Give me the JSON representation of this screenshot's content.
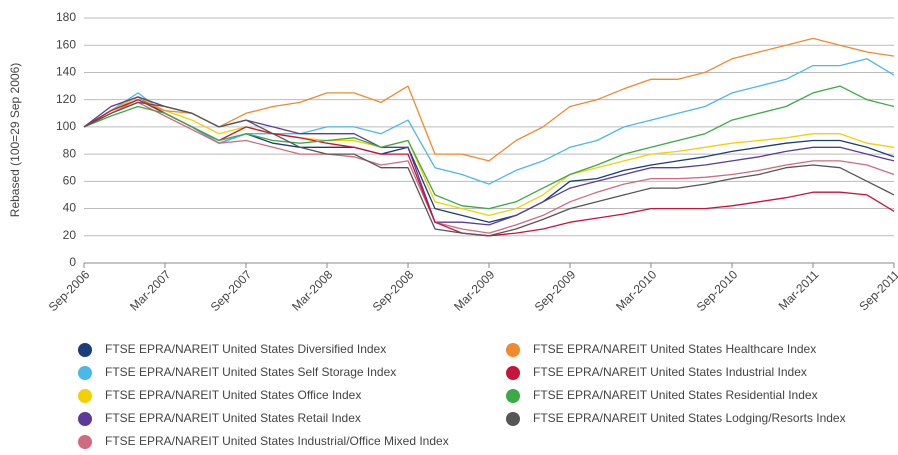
{
  "chart_data": {
    "type": "line",
    "y_label": "Rebased (100=29 Sep 2006)",
    "categories": [
      "Sep-2006",
      null,
      null,
      "Mar-2007",
      null,
      null,
      "Sep-2007",
      null,
      null,
      "Mar-2008",
      null,
      null,
      "Sep-2008",
      null,
      null,
      "Mar-2009",
      null,
      null,
      "Sep-2009",
      null,
      null,
      "Mar-2010",
      null,
      null,
      "Sep-2010",
      null,
      null,
      "Mar-2011",
      null,
      null,
      "Sep-2011"
    ],
    "ylim": [
      0,
      180
    ],
    "yticks": [
      0,
      20,
      40,
      60,
      80,
      100,
      120,
      140,
      160,
      180
    ],
    "grid": true,
    "series": [
      {
        "name": "FTSE EPRA/NAREIT United States Diversified Index",
        "color": "#1a3d7c",
        "values": [
          100,
          112,
          122,
          110,
          100,
          88,
          95,
          88,
          85,
          85,
          85,
          80,
          85,
          40,
          35,
          30,
          35,
          45,
          60,
          62,
          68,
          72,
          75,
          78,
          82,
          85,
          88,
          90,
          90,
          85,
          78
        ]
      },
      {
        "name": "FTSE EPRA/NAREIT United States Self Storage Index",
        "color": "#4ab8e8",
        "values": [
          100,
          112,
          125,
          110,
          100,
          88,
          95,
          95,
          95,
          100,
          100,
          95,
          105,
          70,
          65,
          58,
          68,
          75,
          85,
          90,
          100,
          105,
          110,
          115,
          125,
          130,
          135,
          145,
          145,
          150,
          138
        ]
      },
      {
        "name": "FTSE EPRA/NAREIT United States Office Index",
        "color": "#f5d000",
        "values": [
          100,
          112,
          122,
          112,
          105,
          95,
          100,
          95,
          92,
          90,
          90,
          85,
          90,
          45,
          40,
          35,
          40,
          50,
          65,
          70,
          75,
          80,
          82,
          85,
          88,
          90,
          92,
          95,
          95,
          88,
          85
        ]
      },
      {
        "name": "FTSE EPRA/NAREIT United States Retail Index",
        "color": "#5b3a9a",
        "values": [
          100,
          115,
          122,
          115,
          110,
          100,
          105,
          100,
          95,
          95,
          95,
          85,
          85,
          30,
          30,
          28,
          35,
          45,
          55,
          60,
          65,
          70,
          70,
          72,
          75,
          78,
          82,
          85,
          85,
          80,
          75
        ]
      },
      {
        "name": "FTSE EPRA/NAREIT United States Industrial/Office Mixed Index",
        "color": "#d06a80",
        "values": [
          100,
          110,
          118,
          108,
          98,
          88,
          90,
          85,
          80,
          80,
          78,
          72,
          75,
          30,
          25,
          22,
          28,
          35,
          45,
          52,
          58,
          62,
          62,
          63,
          65,
          68,
          72,
          75,
          75,
          72,
          65
        ]
      },
      {
        "name": "FTSE EPRA/NAREIT United States Healthcare Index",
        "color": "#f08a2a",
        "values": [
          100,
          110,
          120,
          112,
          110,
          100,
          110,
          115,
          118,
          125,
          125,
          118,
          130,
          80,
          80,
          75,
          90,
          100,
          115,
          120,
          128,
          135,
          135,
          140,
          150,
          155,
          160,
          165,
          160,
          155,
          152
        ]
      },
      {
        "name": "FTSE EPRA/NAREIT United States Industrial Index",
        "color": "#c8143c",
        "values": [
          100,
          112,
          120,
          110,
          100,
          90,
          100,
          95,
          92,
          88,
          85,
          80,
          80,
          30,
          22,
          20,
          22,
          25,
          30,
          33,
          36,
          40,
          40,
          40,
          42,
          45,
          48,
          52,
          52,
          50,
          38
        ]
      },
      {
        "name": "FTSE EPRA/NAREIT United States Residential Index",
        "color": "#3aaa45",
        "values": [
          100,
          108,
          115,
          110,
          100,
          90,
          95,
          90,
          88,
          90,
          92,
          85,
          90,
          50,
          42,
          40,
          45,
          55,
          65,
          72,
          80,
          85,
          90,
          95,
          105,
          110,
          115,
          125,
          130,
          120,
          115
        ]
      },
      {
        "name": "FTSE EPRA/NAREIT United States Lodging/Resorts Index",
        "color": "#555555",
        "values": [
          100,
          110,
          118,
          115,
          110,
          100,
          105,
          95,
          85,
          80,
          80,
          70,
          70,
          25,
          22,
          20,
          25,
          32,
          40,
          45,
          50,
          55,
          55,
          58,
          62,
          65,
          70,
          72,
          70,
          60,
          50
        ]
      }
    ]
  }
}
